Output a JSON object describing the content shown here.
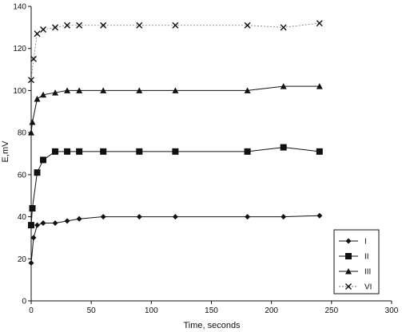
{
  "chart_data": {
    "type": "line",
    "title": "",
    "xlabel": "Time, seconds",
    "ylabel": "E,mV",
    "xlim": [
      0,
      300
    ],
    "ylim": [
      0,
      140
    ],
    "x_ticks": [
      "0",
      "50",
      "100",
      "150",
      "200",
      "250",
      "300"
    ],
    "y_ticks": [
      "0",
      "20",
      "40",
      "60",
      "80",
      "100",
      "120",
      "140"
    ],
    "grid": false,
    "legend_position": "bottom-right",
    "series": [
      {
        "name": "I",
        "marker": "diamond",
        "color": "#111111",
        "x": [
          0,
          2,
          5,
          10,
          20,
          30,
          40,
          60,
          90,
          120,
          180,
          210,
          240
        ],
        "y": [
          18,
          30,
          36,
          37,
          37,
          38,
          39,
          40,
          40,
          40,
          40,
          40,
          40.5
        ]
      },
      {
        "name": "II",
        "marker": "square",
        "color": "#111111",
        "x": [
          0,
          1,
          5,
          10,
          20,
          30,
          40,
          60,
          90,
          120,
          180,
          210,
          240
        ],
        "y": [
          36,
          44,
          61,
          67,
          71,
          71,
          71,
          71,
          71,
          71,
          71,
          73,
          71
        ]
      },
      {
        "name": "III",
        "marker": "triangle",
        "color": "#111111",
        "x": [
          0,
          1,
          5,
          10,
          20,
          30,
          40,
          60,
          90,
          120,
          180,
          210,
          240
        ],
        "y": [
          80,
          85,
          96,
          98,
          99,
          100,
          100,
          100,
          100,
          100,
          100,
          102,
          102
        ]
      },
      {
        "name": "VI",
        "marker": "x",
        "color": "#777777",
        "x": [
          0,
          2,
          5,
          10,
          20,
          30,
          40,
          60,
          90,
          120,
          180,
          210,
          240
        ],
        "y": [
          105,
          115,
          127,
          129,
          130,
          131,
          131,
          131,
          131,
          131,
          131,
          130,
          132
        ]
      }
    ]
  }
}
